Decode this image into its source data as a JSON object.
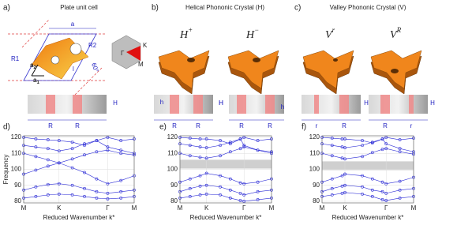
{
  "panels": [
    {
      "label": "a)",
      "title": "Plate unit cell",
      "lattice": {
        "a": "a",
        "R2": "R2",
        "R1": "R1",
        "a2": {
          "base": "a",
          "sub": "2"
        },
        "a1": {
          "base": "a",
          "sub": "1"
        },
        "angle": "60°",
        "l": "l"
      },
      "bz": [
        "Γ",
        "K",
        "M"
      ],
      "section": [
        "H",
        "R",
        "R"
      ]
    },
    {
      "label": "b)",
      "title": "Helical Phononic Crystal (H)",
      "crystals": [
        {
          "base": "H",
          "sup": "+",
          "section": [
            "h",
            "H",
            "R",
            "R"
          ]
        },
        {
          "base": "H",
          "sup": "−",
          "section": [
            "H",
            "h",
            "R",
            "R"
          ]
        }
      ]
    },
    {
      "label": "c)",
      "title": "Valley Phononic Crystal (V)",
      "crystals": [
        {
          "base": "V",
          "sup": "r",
          "section": [
            "H",
            "r",
            "R"
          ]
        },
        {
          "base": "V",
          "sup": "R",
          "section": [
            "H",
            "R",
            "r"
          ]
        }
      ]
    }
  ],
  "chart_data": [
    {
      "type": "line",
      "label": "d)",
      "ylabel": "Frequency",
      "xlabel": "Reduced Wavenumber k*",
      "x": [
        0,
        0.11,
        0.22,
        0.32,
        0.44,
        0.55,
        0.66,
        0.76,
        0.88,
        1
      ],
      "xlim": [
        0,
        1
      ],
      "xticks": [
        {
          "value": 0,
          "label": "M"
        },
        {
          "value": 0.32,
          "label": "K"
        },
        {
          "value": 0.76,
          "label": "Γ"
        },
        {
          "value": 1,
          "label": "M"
        }
      ],
      "ylim": [
        79,
        121
      ],
      "yticks": [
        80,
        90,
        100,
        110,
        120
      ],
      "grid": true,
      "series": [
        {
          "color": "#2b2bd6",
          "values": [
            82,
            83,
            84,
            84.5,
            84,
            83,
            82,
            81.5,
            82,
            83
          ]
        },
        {
          "color": "#2b2bd6",
          "values": [
            87,
            89,
            90.5,
            91,
            90,
            88,
            86,
            85,
            86,
            87
          ]
        },
        {
          "color": "#2b2bd6",
          "values": [
            97,
            99.5,
            102,
            104,
            101,
            98,
            94,
            91,
            93,
            96
          ]
        },
        {
          "color": "#2b2bd6",
          "values": [
            110,
            108,
            106,
            104,
            106.5,
            109,
            111,
            112,
            110,
            109
          ]
        },
        {
          "color": "#2b2bd6",
          "values": [
            115,
            114,
            113,
            111.5,
            113,
            116,
            118,
            114,
            112,
            110
          ]
        },
        {
          "color": "#2b2bd6",
          "values": [
            120,
            119,
            118.5,
            118,
            117,
            115,
            118,
            120,
            118,
            119
          ]
        }
      ]
    },
    {
      "type": "line",
      "label": "e)",
      "xlabel": "Reduced Wavenumber k*",
      "x": [
        0,
        0.11,
        0.22,
        0.29,
        0.44,
        0.55,
        0.66,
        0.7,
        0.85,
        1
      ],
      "xlim": [
        0,
        1
      ],
      "xticks": [
        {
          "value": 0,
          "label": "M"
        },
        {
          "value": 0.29,
          "label": "K"
        },
        {
          "value": 0.7,
          "label": "Γ"
        },
        {
          "value": 1,
          "label": "M"
        }
      ],
      "ylim": [
        79,
        121
      ],
      "yticks": [
        80,
        90,
        100,
        110,
        120
      ],
      "grid": true,
      "gap": [
        100.5,
        106
      ],
      "series": [
        {
          "color": "#2b2bd6",
          "values": [
            82,
            83,
            84,
            84.5,
            84,
            82,
            80.5,
            80,
            81,
            82
          ]
        },
        {
          "color": "#2b2bd6",
          "values": [
            86,
            88,
            89.5,
            90,
            89,
            87,
            85,
            84,
            86,
            87
          ]
        },
        {
          "color": "#2b2bd6",
          "values": [
            92,
            94,
            96,
            97.5,
            96,
            94,
            91.5,
            91,
            92,
            94
          ]
        },
        {
          "color": "#2b2bd6",
          "values": [
            110,
            108.5,
            107.5,
            107,
            108.5,
            111,
            113,
            114,
            112,
            110
          ]
        },
        {
          "color": "#2b2bd6",
          "values": [
            116,
            115,
            114,
            113.5,
            115,
            117,
            119,
            115,
            112,
            111
          ]
        },
        {
          "color": "#2b2bd6",
          "values": [
            120,
            119.5,
            119,
            119,
            118,
            116,
            119,
            120,
            118,
            119
          ]
        }
      ]
    },
    {
      "type": "line",
      "label": "f)",
      "xlabel": "Reduced Wavenumber k*",
      "x": [
        0,
        0.11,
        0.22,
        0.25,
        0.44,
        0.55,
        0.66,
        0.7,
        0.85,
        1
      ],
      "xlim": [
        0,
        1
      ],
      "xticks": [
        {
          "value": 0,
          "label": "M"
        },
        {
          "value": 0.25,
          "label": "K"
        },
        {
          "value": 0.7,
          "label": "Γ"
        },
        {
          "value": 1,
          "label": "M"
        }
      ],
      "ylim": [
        79,
        121
      ],
      "yticks": [
        80,
        90,
        100,
        110,
        120
      ],
      "grid": true,
      "gap": [
        99.5,
        105
      ],
      "series": [
        {
          "color": "#2b2bd6",
          "values": [
            83,
            84,
            85,
            85.5,
            84.5,
            83,
            81,
            80.5,
            82,
            83
          ]
        },
        {
          "color": "#2b2bd6",
          "values": [
            86,
            88,
            89.5,
            90,
            89,
            87,
            86,
            85,
            87,
            88
          ]
        },
        {
          "color": "#2b2bd6",
          "values": [
            92,
            94,
            96,
            97,
            96,
            94,
            92,
            91,
            92.5,
            95
          ]
        },
        {
          "color": "#2b2bd6",
          "values": [
            110,
            108.5,
            107,
            106.5,
            108,
            110.5,
            112.5,
            113,
            111,
            109.5
          ]
        },
        {
          "color": "#2b2bd6",
          "values": [
            116,
            115,
            114,
            113.5,
            115,
            117,
            119,
            116,
            113,
            111
          ]
        },
        {
          "color": "#2b2bd6",
          "values": [
            120,
            119.5,
            119,
            119,
            118,
            116.5,
            119,
            120,
            118.5,
            119.5
          ]
        }
      ]
    }
  ]
}
